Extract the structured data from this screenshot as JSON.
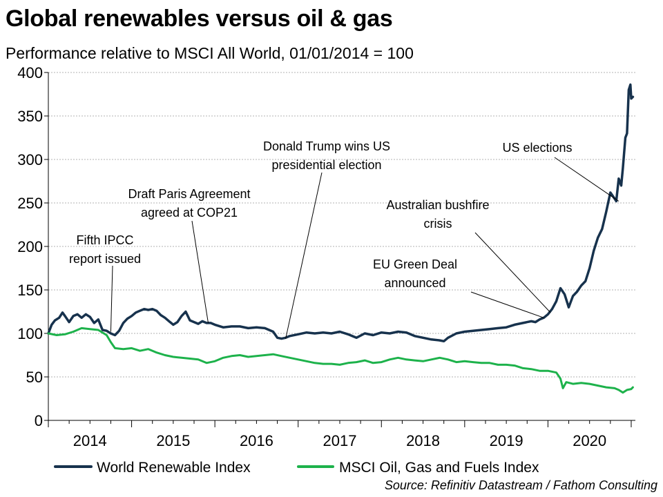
{
  "chart_data": {
    "type": "line",
    "title": "Global renewables versus oil & gas",
    "subtitle": "Performance relative to MSCI All World, 01/01/2014 = 100",
    "source": "Source: Refinitiv Datastream / Fathom Consulting",
    "ylim": [
      0,
      400
    ],
    "yticks": [
      0,
      50,
      100,
      150,
      200,
      250,
      300,
      350,
      400
    ],
    "xlim": [
      2014.0,
      2021.05
    ],
    "xtick_labels": [
      "2014",
      "2015",
      "2016",
      "2017",
      "2018",
      "2019",
      "2020"
    ],
    "grid": true,
    "legend_position": "bottom",
    "colors": {
      "renewables": "#17324d",
      "oilgas": "#1db24b",
      "grid": "#b0b0b0"
    },
    "series": [
      {
        "name": "World Renewable Index",
        "x": [
          2014.0,
          2014.04,
          2014.08,
          2014.13,
          2014.17,
          2014.2,
          2014.25,
          2014.3,
          2014.35,
          2014.4,
          2014.45,
          2014.5,
          2014.55,
          2014.6,
          2014.65,
          2014.7,
          2014.75,
          2014.8,
          2014.85,
          2014.9,
          2014.95,
          2015.0,
          2015.05,
          2015.1,
          2015.15,
          2015.2,
          2015.25,
          2015.3,
          2015.35,
          2015.4,
          2015.45,
          2015.5,
          2015.55,
          2015.6,
          2015.65,
          2015.7,
          2015.75,
          2015.8,
          2015.85,
          2015.9,
          2015.95,
          2016.0,
          2016.1,
          2016.2,
          2016.3,
          2016.4,
          2016.5,
          2016.6,
          2016.7,
          2016.75,
          2016.8,
          2016.85,
          2016.9,
          2017.0,
          2017.1,
          2017.2,
          2017.3,
          2017.4,
          2017.5,
          2017.6,
          2017.7,
          2017.8,
          2017.9,
          2018.0,
          2018.1,
          2018.2,
          2018.3,
          2018.4,
          2018.5,
          2018.6,
          2018.7,
          2018.75,
          2018.8,
          2018.9,
          2019.0,
          2019.1,
          2019.2,
          2019.3,
          2019.4,
          2019.5,
          2019.6,
          2019.7,
          2019.75,
          2019.8,
          2019.85,
          2019.9,
          2019.95,
          2020.0,
          2020.05,
          2020.1,
          2020.15,
          2020.2,
          2020.25,
          2020.3,
          2020.35,
          2020.4,
          2020.45,
          2020.5,
          2020.55,
          2020.6,
          2020.65,
          2020.7,
          2020.75,
          2020.8,
          2020.82,
          2020.85,
          2020.88,
          2020.9,
          2020.93,
          2020.95,
          2020.97,
          2020.99,
          2021.0,
          2021.02
        ],
        "values": [
          100,
          110,
          115,
          118,
          124,
          120,
          113,
          120,
          122,
          118,
          122,
          119,
          112,
          116,
          104,
          103,
          100,
          98,
          103,
          112,
          117,
          120,
          124,
          126,
          128,
          127,
          128,
          126,
          121,
          118,
          114,
          110,
          113,
          120,
          125,
          115,
          113,
          111,
          114,
          112,
          112,
          110,
          107,
          108,
          108,
          106,
          107,
          106,
          102,
          95,
          94,
          95,
          97,
          99,
          101,
          100,
          101,
          100,
          102,
          99,
          95,
          100,
          98,
          101,
          100,
          102,
          101,
          97,
          95,
          93,
          92,
          91,
          95,
          100,
          102,
          103,
          104,
          105,
          106,
          107,
          110,
          112,
          113,
          114,
          113,
          116,
          118,
          122,
          128,
          137,
          152,
          145,
          130,
          143,
          148,
          155,
          160,
          175,
          195,
          210,
          220,
          240,
          262,
          255,
          252,
          278,
          270,
          290,
          325,
          330,
          380,
          386,
          370,
          372
        ]
      },
      {
        "name": "MSCI Oil, Gas and Fuels Index",
        "x": [
          2014.0,
          2014.1,
          2014.2,
          2014.3,
          2014.4,
          2014.5,
          2014.6,
          2014.7,
          2014.75,
          2014.8,
          2014.9,
          2015.0,
          2015.1,
          2015.2,
          2015.3,
          2015.4,
          2015.5,
          2015.6,
          2015.7,
          2015.8,
          2015.9,
          2016.0,
          2016.1,
          2016.2,
          2016.3,
          2016.4,
          2016.5,
          2016.6,
          2016.7,
          2016.8,
          2016.9,
          2017.0,
          2017.1,
          2017.2,
          2017.3,
          2017.4,
          2017.5,
          2017.6,
          2017.7,
          2017.8,
          2017.9,
          2018.0,
          2018.1,
          2018.2,
          2018.3,
          2018.4,
          2018.5,
          2018.6,
          2018.7,
          2018.8,
          2018.9,
          2019.0,
          2019.1,
          2019.2,
          2019.3,
          2019.4,
          2019.5,
          2019.6,
          2019.7,
          2019.8,
          2019.9,
          2020.0,
          2020.1,
          2020.15,
          2020.18,
          2020.22,
          2020.3,
          2020.4,
          2020.5,
          2020.6,
          2020.7,
          2020.8,
          2020.85,
          2020.9,
          2020.95,
          2021.0,
          2021.02
        ],
        "values": [
          100,
          98,
          99,
          102,
          106,
          105,
          104,
          98,
          90,
          83,
          82,
          83,
          80,
          82,
          78,
          75,
          73,
          72,
          71,
          70,
          66,
          68,
          72,
          74,
          75,
          73,
          74,
          75,
          76,
          74,
          72,
          70,
          68,
          66,
          65,
          65,
          64,
          66,
          67,
          69,
          66,
          67,
          70,
          72,
          70,
          69,
          68,
          70,
          72,
          70,
          67,
          68,
          67,
          66,
          66,
          64,
          64,
          63,
          60,
          59,
          57,
          57,
          55,
          48,
          37,
          44,
          42,
          43,
          42,
          40,
          38,
          37,
          35,
          32,
          35,
          36,
          38
        ]
      }
    ],
    "annotations": [
      {
        "lines": [
          "Fifth IPCC",
          "report issued"
        ],
        "x": 2014.75,
        "y": 102
      },
      {
        "lines": [
          "Draft Paris Agreement",
          "agreed at COP21"
        ],
        "x": 2015.92,
        "y": 112
      },
      {
        "lines": [
          "Donald Trump wins US",
          "presidential election"
        ],
        "x": 2016.85,
        "y": 94
      },
      {
        "lines": [
          "EU Green Deal",
          "announced"
        ],
        "x": 2019.95,
        "y": 118
      },
      {
        "lines": [
          "Australian bushfire",
          "crisis"
        ],
        "x": 2020.03,
        "y": 124
      },
      {
        "lines": [
          "US elections"
        ],
        "x": 2020.85,
        "y": 252
      }
    ]
  }
}
